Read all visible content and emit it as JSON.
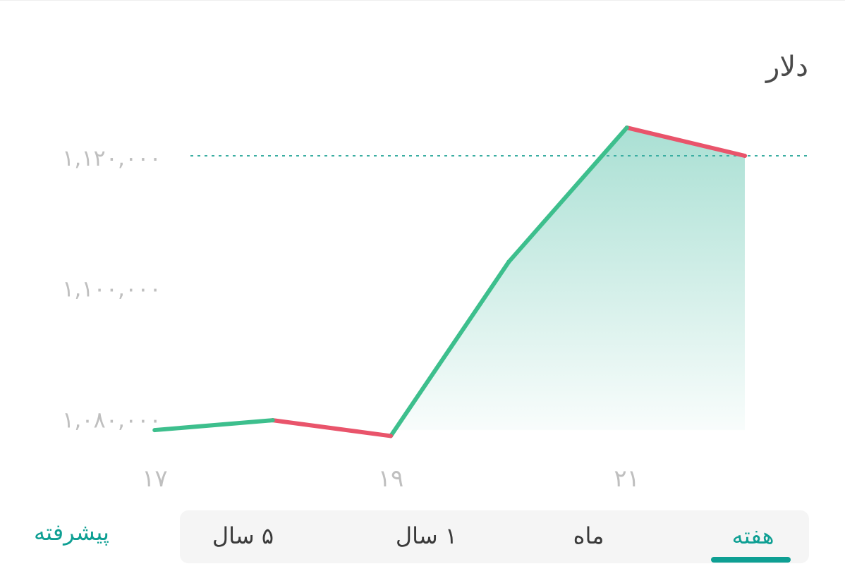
{
  "title": "دلار",
  "colors": {
    "up_line": "#3dbf8d",
    "down_line": "#e9546b",
    "area_fill": "#64c6b0",
    "reference_line": "#3aaea2",
    "axis_label": "#bfbfbf",
    "accent": "#0e9f93"
  },
  "chart_data": {
    "type": "area",
    "title": "دلار",
    "xlabel": "",
    "ylabel": "",
    "x": [
      17,
      18,
      19,
      20,
      21,
      22
    ],
    "x_tick_labels": [
      "۱۷",
      "۱۹",
      "۲۱"
    ],
    "x_tick_values": [
      17,
      19,
      21
    ],
    "y_tick_labels": [
      "۱,۰۸۰,۰۰۰",
      "۱,۱۰۰,۰۰۰",
      "۱,۱۲۰,۰۰۰"
    ],
    "y_tick_values": [
      1080000,
      1100000,
      1120000
    ],
    "ylim": [
      1074000,
      1130000
    ],
    "xlim": [
      16.0,
      22.55
    ],
    "series": [
      {
        "values": [
          1078300,
          1079800,
          1077400,
          1104000,
          1124500,
          1120200
        ]
      }
    ],
    "reference_value": 1120200,
    "grid": false
  },
  "period_tabs": [
    {
      "id": "week",
      "label": "هفته",
      "active": true
    },
    {
      "id": "month",
      "label": "ماه",
      "active": false
    },
    {
      "id": "year1",
      "label": "۱ سال",
      "active": false
    },
    {
      "id": "year5",
      "label": "۵ سال",
      "active": false
    }
  ],
  "advanced_label": "پیشرفته"
}
